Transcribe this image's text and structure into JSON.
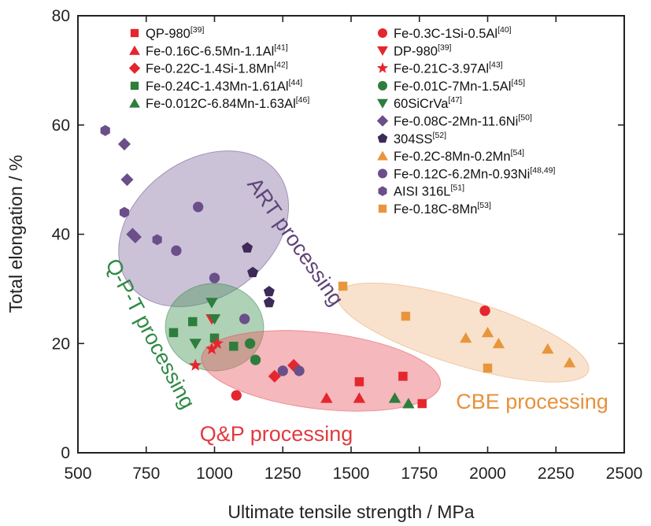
{
  "chart_data": {
    "type": "scatter",
    "title": "",
    "xlabel": "Ultimate tensile strength / MPa",
    "ylabel": "Total elongation / %",
    "xlim": [
      500,
      2500
    ],
    "ylim": [
      0,
      80
    ],
    "xticks": [
      500,
      750,
      1000,
      1250,
      1500,
      1750,
      2000,
      2250,
      2500
    ],
    "yticks": [
      0,
      20,
      40,
      60,
      80
    ],
    "grid": false,
    "legend_position": "top",
    "regions": [
      {
        "label": "ART processing",
        "color": "#6a4a86",
        "fill": "#8c78a8",
        "cx": 960,
        "cy": 41,
        "rx": 250,
        "ry": 17,
        "label_color": "#5e4478"
      },
      {
        "label": "Q-P-T processing",
        "color": "#2f8a45",
        "fill": "#4e9a5e",
        "cx": 1000,
        "cy": 23,
        "rx": 180,
        "ry": 8,
        "label_color": "#2f8a45"
      },
      {
        "label": "Q&P processing",
        "color": "#e0474e",
        "fill": "#e8626a",
        "cx": 1390,
        "cy": 15,
        "rx": 440,
        "ry": 7,
        "label_color": "#e03a40"
      },
      {
        "label": "CBE processing",
        "color": "#e8a060",
        "fill": "#f2bf90",
        "cx": 1910,
        "cy": 22,
        "rx": 480,
        "ry": 6,
        "label_color": "#e6913c"
      }
    ],
    "series": [
      {
        "name": "QP-980",
        "ref": "[39]",
        "marker": "square",
        "color": "#e4262e",
        "points": [
          [
            1530,
            13
          ],
          [
            1690,
            14
          ],
          [
            1760,
            9
          ]
        ]
      },
      {
        "name": "Fe-0.16C-6.5Mn-1.1Al",
        "ref": "[41]",
        "marker": "triangle-up",
        "color": "#e4262e",
        "points": [
          [
            1410,
            10
          ],
          [
            1530,
            10
          ]
        ]
      },
      {
        "name": "Fe-0.22C-1.4Si-1.8Mn",
        "ref": "[42]",
        "marker": "diamond",
        "color": "#e4262e",
        "points": [
          [
            1290,
            16
          ],
          [
            1220,
            14
          ]
        ]
      },
      {
        "name": "Fe-0.24C-1.43Mn-1.61Al",
        "ref": "[44]",
        "marker": "square",
        "color": "#2e7d3c",
        "points": [
          [
            850,
            22
          ],
          [
            920,
            24
          ],
          [
            1000,
            21
          ],
          [
            1070,
            19.5
          ]
        ]
      },
      {
        "name": "Fe-0.012C-6.84Mn-1.63Al",
        "ref": "[46]",
        "marker": "triangle-up",
        "color": "#2e7d3c",
        "points": [
          [
            1660,
            10
          ],
          [
            1710,
            9
          ]
        ]
      },
      {
        "name": "Fe-0.3C-1Si-0.5Al",
        "ref": "[40]",
        "marker": "circle",
        "color": "#e4262e",
        "points": [
          [
            1080,
            10.5
          ],
          [
            1990,
            26
          ]
        ]
      },
      {
        "name": "DP-980",
        "ref": "[39]",
        "marker": "triangle-down",
        "color": "#e4262e",
        "points": [
          [
            990,
            24.5
          ]
        ]
      },
      {
        "name": "Fe-0.21C-3.97Al",
        "ref": "[43]",
        "marker": "star",
        "color": "#e4262e",
        "points": [
          [
            930,
            16
          ],
          [
            990,
            19
          ],
          [
            1010,
            20
          ]
        ]
      },
      {
        "name": "Fe-0.01C-7Mn-1.5Al",
        "ref": "[45]",
        "marker": "circle",
        "color": "#2e7d3c",
        "points": [
          [
            1130,
            20
          ],
          [
            1150,
            17
          ]
        ]
      },
      {
        "name": "60SiCrVa",
        "ref": "[47]",
        "marker": "triangle-down",
        "color": "#2e7d3c",
        "points": [
          [
            930,
            20
          ],
          [
            990,
            27.5
          ],
          [
            1000,
            24.5
          ]
        ]
      },
      {
        "name": "Fe-0.08C-2Mn-11.6Ni",
        "ref": "[50]",
        "marker": "diamond",
        "color": "#6a4f8a",
        "points": [
          [
            670,
            56.5
          ],
          [
            680,
            50
          ],
          [
            700,
            40
          ],
          [
            710,
            39.5
          ]
        ]
      },
      {
        "name": "304SS",
        "ref": "[52]",
        "marker": "pentagon",
        "color": "#3e2a58",
        "points": [
          [
            1120,
            37.5
          ],
          [
            1140,
            33
          ],
          [
            1200,
            29.5
          ],
          [
            1200,
            27.5
          ]
        ]
      },
      {
        "name": "Fe-0.2C-8Mn-0.2Mn",
        "ref": "[54]",
        "marker": "triangle-up",
        "color": "#e8963e",
        "points": [
          [
            1920,
            21
          ],
          [
            2000,
            22
          ],
          [
            2040,
            20
          ],
          [
            2220,
            19
          ],
          [
            2300,
            16.5
          ]
        ]
      },
      {
        "name": "Fe-0.12C-6.2Mn-0.93Ni",
        "ref": "[48,49]",
        "marker": "circle",
        "color": "#6a4f8a",
        "points": [
          [
            940,
            45
          ],
          [
            860,
            37
          ],
          [
            1000,
            32
          ],
          [
            1110,
            24.5
          ],
          [
            1250,
            15
          ],
          [
            1310,
            15
          ]
        ]
      },
      {
        "name": "AISI 316L",
        "ref": "[51]",
        "marker": "hexagon",
        "color": "#6a4f8a",
        "points": [
          [
            600,
            59
          ],
          [
            670,
            44
          ],
          [
            790,
            39
          ]
        ]
      },
      {
        "name": "Fe-0.18C-8Mn",
        "ref": "[53]",
        "marker": "square",
        "color": "#e8963e",
        "points": [
          [
            1470,
            30.5
          ],
          [
            1700,
            25
          ],
          [
            2000,
            15.5
          ]
        ]
      }
    ]
  }
}
